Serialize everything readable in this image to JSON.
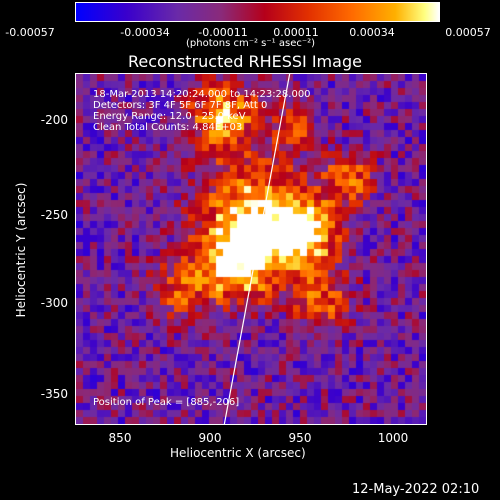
{
  "colorbar": {
    "ticks": [
      "-0.00057",
      "-0.00034",
      "-0.00011",
      "0.00011",
      "0.00034",
      "0.00057"
    ],
    "unit_label": "(photons cm⁻² s⁻¹ asec⁻²)",
    "vmin": -0.00057,
    "vmax": 0.00057
  },
  "title": "Reconstructed RHESSI Image",
  "overlay": {
    "line1": "18-Mar-2013 14:20:24.000 to 14:23:28.000",
    "line2": "Detectors: 3F 4F 5F 6F 7F 8F, Att 0",
    "line3": "Energy Range: 12.0 - 25.0 keV",
    "line4": "Clean     Total Counts: 4.84E+03",
    "peak": "Position of Peak = [885,-206]"
  },
  "axes": {
    "xlabel": "Heliocentric X (arcsec)",
    "ylabel": "Heliocentric Y (arcsec)",
    "xticks": [
      "850",
      "900",
      "950",
      "1000"
    ],
    "yticks": [
      "-200",
      "-250",
      "-300",
      "-350"
    ],
    "xlim": [
      825,
      1016
    ],
    "ylim": [
      -372,
      -176
    ]
  },
  "footer": {
    "timestamp": "12-May-2022 02:10"
  }
}
